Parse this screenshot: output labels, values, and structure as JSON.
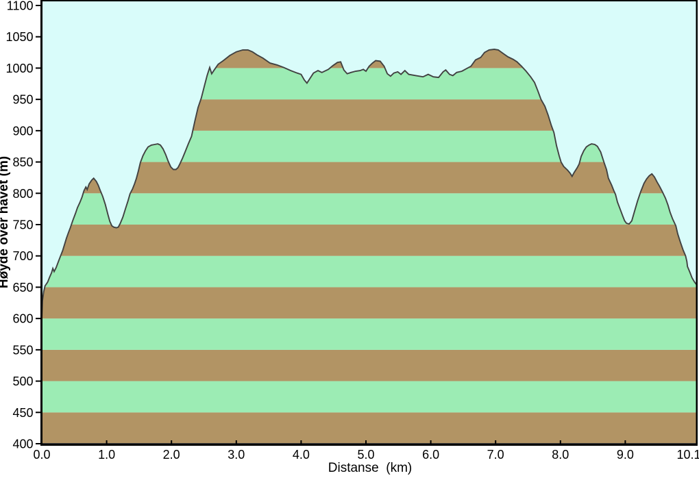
{
  "chart_data": {
    "type": "area",
    "title": "",
    "xlabel": "Distanse  (km)",
    "ylabel": "Høyde over havet (m)",
    "x_unit": "km",
    "y_unit": "m",
    "xlim": [
      0,
      10.1
    ],
    "ylim": [
      400,
      1100
    ],
    "x_ticks": [
      0,
      1,
      2,
      3,
      4,
      5,
      6,
      7,
      8,
      9,
      10.1
    ],
    "x_tick_labels": [
      "0.0",
      "1.0",
      "2.0",
      "3.0",
      "4.0",
      "5.0",
      "6.0",
      "7.0",
      "8.0",
      "9.0",
      "10.1"
    ],
    "y_ticks": [
      400,
      450,
      500,
      550,
      600,
      650,
      700,
      750,
      800,
      850,
      900,
      950,
      1000,
      1050,
      1100
    ],
    "y_tick_labels": [
      "400",
      "450",
      "500",
      "550",
      "600",
      "650",
      "700",
      "750",
      "800",
      "850",
      "900",
      "950",
      "1000",
      "1050",
      "1100"
    ],
    "grid": false,
    "legend": false,
    "style": {
      "plot_background": "#d9fcfa",
      "page_background": "#ffffff",
      "stripe_green": "#9cecb4",
      "stripe_brown": "#b29464",
      "stripe_band_height_m": 50,
      "bottom_band": "brown",
      "outline_color": "#414141",
      "axis_color": "#000000"
    },
    "profile": [
      [
        0.0,
        600
      ],
      [
        0.01,
        628
      ],
      [
        0.03,
        643
      ],
      [
        0.05,
        652
      ],
      [
        0.09,
        658
      ],
      [
        0.12,
        666
      ],
      [
        0.15,
        673
      ],
      [
        0.17,
        680
      ],
      [
        0.19,
        675
      ],
      [
        0.22,
        681
      ],
      [
        0.26,
        692
      ],
      [
        0.29,
        700
      ],
      [
        0.32,
        708
      ],
      [
        0.35,
        718
      ],
      [
        0.38,
        728
      ],
      [
        0.41,
        737
      ],
      [
        0.44,
        745
      ],
      [
        0.48,
        757
      ],
      [
        0.52,
        768
      ],
      [
        0.55,
        777
      ],
      [
        0.59,
        786
      ],
      [
        0.62,
        794
      ],
      [
        0.65,
        804
      ],
      [
        0.68,
        810
      ],
      [
        0.7,
        806
      ],
      [
        0.73,
        815
      ],
      [
        0.77,
        821
      ],
      [
        0.8,
        824
      ],
      [
        0.84,
        819
      ],
      [
        0.87,
        813
      ],
      [
        0.9,
        805
      ],
      [
        0.94,
        795
      ],
      [
        0.98,
        782
      ],
      [
        1.02,
        766
      ],
      [
        1.05,
        755
      ],
      [
        1.08,
        748
      ],
      [
        1.11,
        746
      ],
      [
        1.15,
        745
      ],
      [
        1.18,
        746
      ],
      [
        1.21,
        752
      ],
      [
        1.25,
        762
      ],
      [
        1.29,
        775
      ],
      [
        1.33,
        788
      ],
      [
        1.36,
        799
      ],
      [
        1.38,
        803
      ],
      [
        1.4,
        807
      ],
      [
        1.43,
        815
      ],
      [
        1.46,
        824
      ],
      [
        1.49,
        836
      ],
      [
        1.52,
        849
      ],
      [
        1.56,
        860
      ],
      [
        1.6,
        868
      ],
      [
        1.64,
        874
      ],
      [
        1.69,
        877
      ],
      [
        1.74,
        878
      ],
      [
        1.79,
        879
      ],
      [
        1.83,
        877
      ],
      [
        1.87,
        871
      ],
      [
        1.91,
        862
      ],
      [
        1.95,
        851
      ],
      [
        1.99,
        842
      ],
      [
        2.03,
        838
      ],
      [
        2.07,
        838
      ],
      [
        2.1,
        841
      ],
      [
        2.13,
        847
      ],
      [
        2.17,
        856
      ],
      [
        2.21,
        866
      ],
      [
        2.26,
        879
      ],
      [
        2.31,
        891
      ],
      [
        2.36,
        915
      ],
      [
        2.41,
        937
      ],
      [
        2.46,
        952
      ],
      [
        2.51,
        972
      ],
      [
        2.55,
        988
      ],
      [
        2.59,
        1001
      ],
      [
        2.62,
        991
      ],
      [
        2.66,
        997
      ],
      [
        2.72,
        1006
      ],
      [
        2.8,
        1012
      ],
      [
        2.9,
        1020
      ],
      [
        3.0,
        1026
      ],
      [
        3.1,
        1029
      ],
      [
        3.18,
        1029
      ],
      [
        3.25,
        1026
      ],
      [
        3.32,
        1021
      ],
      [
        3.41,
        1016
      ],
      [
        3.52,
        1008
      ],
      [
        3.63,
        1005
      ],
      [
        3.73,
        1001
      ],
      [
        3.84,
        996
      ],
      [
        3.94,
        992
      ],
      [
        4.0,
        990
      ],
      [
        4.05,
        981
      ],
      [
        4.09,
        976
      ],
      [
        4.14,
        984
      ],
      [
        4.19,
        992
      ],
      [
        4.26,
        996
      ],
      [
        4.32,
        993
      ],
      [
        4.42,
        998
      ],
      [
        4.49,
        1004
      ],
      [
        4.56,
        1009
      ],
      [
        4.61,
        1010
      ],
      [
        4.66,
        997
      ],
      [
        4.71,
        991
      ],
      [
        4.77,
        993
      ],
      [
        4.84,
        995
      ],
      [
        4.91,
        996
      ],
      [
        4.96,
        998
      ],
      [
        5.0,
        995
      ],
      [
        5.05,
        1003
      ],
      [
        5.1,
        1008
      ],
      [
        5.15,
        1012
      ],
      [
        5.22,
        1011
      ],
      [
        5.28,
        1003
      ],
      [
        5.33,
        991
      ],
      [
        5.38,
        987
      ],
      [
        5.43,
        992
      ],
      [
        5.49,
        994
      ],
      [
        5.54,
        990
      ],
      [
        5.6,
        996
      ],
      [
        5.66,
        990
      ],
      [
        5.77,
        988
      ],
      [
        5.88,
        986
      ],
      [
        5.96,
        990
      ],
      [
        6.04,
        986
      ],
      [
        6.12,
        985
      ],
      [
        6.19,
        994
      ],
      [
        6.23,
        997
      ],
      [
        6.29,
        990
      ],
      [
        6.34,
        988
      ],
      [
        6.4,
        993
      ],
      [
        6.48,
        995
      ],
      [
        6.55,
        999
      ],
      [
        6.62,
        1003
      ],
      [
        6.69,
        1013
      ],
      [
        6.77,
        1017
      ],
      [
        6.83,
        1025
      ],
      [
        6.9,
        1029
      ],
      [
        6.98,
        1030
      ],
      [
        7.04,
        1029
      ],
      [
        7.12,
        1023
      ],
      [
        7.19,
        1018
      ],
      [
        7.27,
        1014
      ],
      [
        7.33,
        1010
      ],
      [
        7.4,
        1003
      ],
      [
        7.47,
        995
      ],
      [
        7.54,
        986
      ],
      [
        7.6,
        977
      ],
      [
        7.65,
        964
      ],
      [
        7.7,
        950
      ],
      [
        7.76,
        939
      ],
      [
        7.81,
        925
      ],
      [
        7.86,
        908
      ],
      [
        7.9,
        897
      ],
      [
        7.94,
        876
      ],
      [
        7.98,
        860
      ],
      [
        8.01,
        850
      ],
      [
        8.05,
        843
      ],
      [
        8.11,
        837
      ],
      [
        8.15,
        832
      ],
      [
        8.18,
        827
      ],
      [
        8.21,
        833
      ],
      [
        8.26,
        841
      ],
      [
        8.29,
        847
      ],
      [
        8.32,
        859
      ],
      [
        8.36,
        868
      ],
      [
        8.4,
        874
      ],
      [
        8.44,
        877
      ],
      [
        8.48,
        879
      ],
      [
        8.53,
        878
      ],
      [
        8.57,
        875
      ],
      [
        8.62,
        866
      ],
      [
        8.67,
        850
      ],
      [
        8.71,
        838
      ],
      [
        8.74,
        824
      ],
      [
        8.79,
        813
      ],
      [
        8.82,
        805
      ],
      [
        8.85,
        798
      ],
      [
        8.88,
        786
      ],
      [
        8.92,
        775
      ],
      [
        8.96,
        764
      ],
      [
        8.99,
        756
      ],
      [
        9.02,
        752
      ],
      [
        9.06,
        751
      ],
      [
        9.1,
        756
      ],
      [
        9.14,
        770
      ],
      [
        9.19,
        788
      ],
      [
        9.24,
        803
      ],
      [
        9.29,
        816
      ],
      [
        9.33,
        823
      ],
      [
        9.37,
        828
      ],
      [
        9.41,
        831
      ],
      [
        9.45,
        826
      ],
      [
        9.49,
        818
      ],
      [
        9.53,
        811
      ],
      [
        9.57,
        803
      ],
      [
        9.62,
        792
      ],
      [
        9.66,
        781
      ],
      [
        9.69,
        770
      ],
      [
        9.73,
        759
      ],
      [
        9.78,
        748
      ],
      [
        9.81,
        735
      ],
      [
        9.85,
        722
      ],
      [
        9.89,
        710
      ],
      [
        9.93,
        700
      ],
      [
        9.95,
        691
      ],
      [
        9.96,
        683
      ],
      [
        9.98,
        678
      ],
      [
        10.0,
        673
      ],
      [
        10.03,
        665
      ],
      [
        10.07,
        658
      ],
      [
        10.1,
        654
      ]
    ]
  }
}
